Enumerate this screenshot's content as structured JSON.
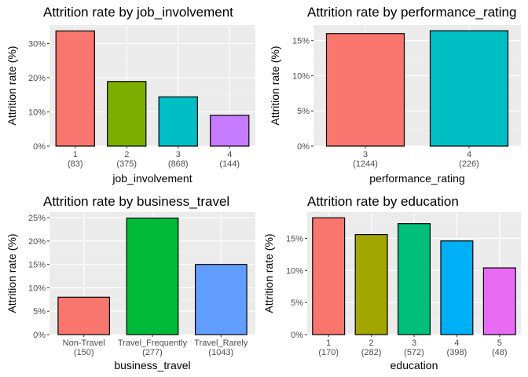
{
  "chart_data": [
    {
      "type": "bar",
      "title": "Attrition rate by job_involvement",
      "xlabel": "job_involvement",
      "ylabel": "Attrition rate (%)",
      "categories": [
        "1",
        "2",
        "3",
        "4"
      ],
      "counts": [
        "(83)",
        "(375)",
        "(868)",
        "(144)"
      ],
      "values": [
        33.7,
        18.9,
        14.4,
        9.0
      ],
      "ylim": [
        0,
        35.4
      ],
      "yticks": [
        0,
        10,
        20,
        30
      ],
      "ytick_labels": [
        "0%",
        "10%",
        "20%",
        "30%"
      ],
      "colors": [
        "#F8766D",
        "#7CAE00",
        "#00BFC4",
        "#C77CFF"
      ],
      "grid": true,
      "legend": "none"
    },
    {
      "type": "bar",
      "title": "Attrition rate by performance_rating",
      "xlabel": "performance_rating",
      "ylabel": "Attrition rate (%)",
      "categories": [
        "3",
        "4"
      ],
      "counts": [
        "(1244)",
        "(226)"
      ],
      "values": [
        16.0,
        16.4
      ],
      "ylim": [
        0,
        17.2
      ],
      "yticks": [
        0,
        5,
        10,
        15
      ],
      "ytick_labels": [
        "0%",
        "5%",
        "10%",
        "15%"
      ],
      "colors": [
        "#F8766D",
        "#00BFC4"
      ],
      "grid": true,
      "legend": "none"
    },
    {
      "type": "bar",
      "title": "Attrition rate by business_travel",
      "xlabel": "business_travel",
      "ylabel": "Attrition rate (%)",
      "categories": [
        "Non-Travel",
        "Travel_Frequently",
        "Travel_Rarely"
      ],
      "counts": [
        "(150)",
        "(277)",
        "(1043)"
      ],
      "values": [
        8.0,
        24.9,
        15.0
      ],
      "ylim": [
        0,
        26.2
      ],
      "yticks": [
        0,
        5,
        10,
        15,
        20,
        25
      ],
      "ytick_labels": [
        "0%",
        "5%",
        "10%",
        "15%",
        "20%",
        "25%"
      ],
      "colors": [
        "#F8766D",
        "#00BA38",
        "#619CFF"
      ],
      "grid": true,
      "legend": "none"
    },
    {
      "type": "bar",
      "title": "Attrition rate by education",
      "xlabel": "education",
      "ylabel": "Attrition rate (%)",
      "categories": [
        "1",
        "2",
        "3",
        "4",
        "5"
      ],
      "counts": [
        "(170)",
        "(282)",
        "(572)",
        "(398)",
        "(48)"
      ],
      "values": [
        18.2,
        15.6,
        17.3,
        14.6,
        10.4
      ],
      "ylim": [
        0,
        19.1
      ],
      "yticks": [
        0,
        5,
        10,
        15
      ],
      "ytick_labels": [
        "0%",
        "5%",
        "10%",
        "15%"
      ],
      "colors": [
        "#F8766D",
        "#A3A500",
        "#00BF7D",
        "#00B0F6",
        "#E76BF3"
      ],
      "grid": true,
      "legend": "none"
    }
  ]
}
